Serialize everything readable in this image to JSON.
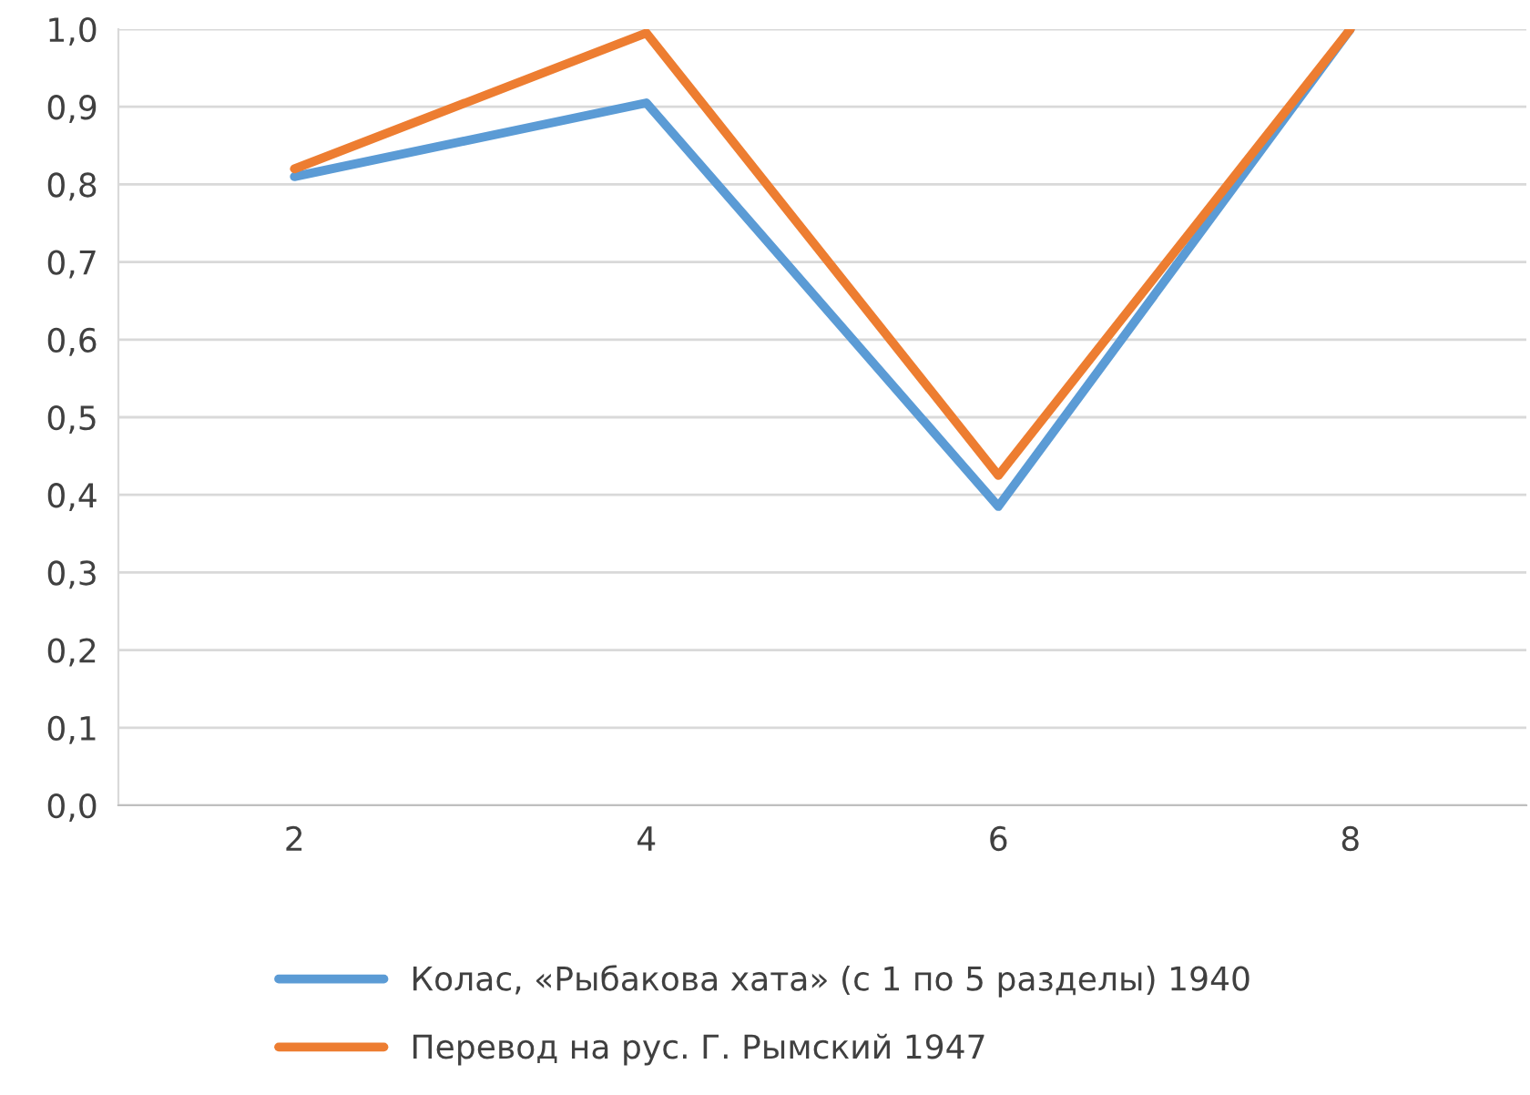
{
  "chart_data": {
    "type": "line",
    "categories": [
      "2",
      "4",
      "6",
      "8"
    ],
    "series": [
      {
        "name": "Колас, «Рыбакова хата» (с 1 по 5 разделы) 1940",
        "color": "#5b9bd5",
        "values": [
          0.81,
          0.905,
          0.385,
          1.0
        ]
      },
      {
        "name": "Перевод на рус. Г. Рымский 1947",
        "color": "#ed7d31",
        "values": [
          0.82,
          0.995,
          0.425,
          1.0
        ]
      }
    ],
    "ylim": [
      0,
      1
    ],
    "yticks": [
      {
        "value": 0,
        "label": "0,0"
      },
      {
        "value": 0.1,
        "label": "0,1"
      },
      {
        "value": 0.2,
        "label": "0,2"
      },
      {
        "value": 0.3,
        "label": "0,3"
      },
      {
        "value": 0.4,
        "label": "0,4"
      },
      {
        "value": 0.5,
        "label": "0,5"
      },
      {
        "value": 0.6,
        "label": "0,6"
      },
      {
        "value": 0.7,
        "label": "0,7"
      },
      {
        "value": 0.8,
        "label": "0,8"
      },
      {
        "value": 0.9,
        "label": "0,9"
      },
      {
        "value": 1,
        "label": "1,0"
      }
    ],
    "grid": "y",
    "legend": "bottom",
    "marker": "none",
    "line_style": "solid"
  }
}
